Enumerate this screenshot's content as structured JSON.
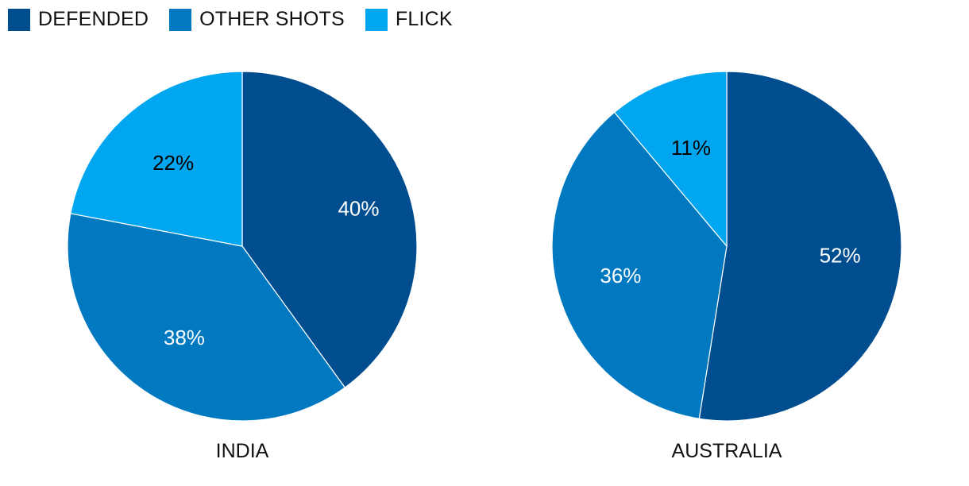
{
  "chart_data": [
    {
      "type": "pie",
      "title": "INDIA",
      "categories": [
        "DEFENDED",
        "OTHER SHOTS",
        "FLICK"
      ],
      "values": [
        40,
        38,
        22
      ],
      "labels": [
        "40%",
        "38%",
        "22%"
      ]
    },
    {
      "type": "pie",
      "title": "AUSTRALIA",
      "categories": [
        "DEFENDED",
        "OTHER SHOTS",
        "FLICK"
      ],
      "values": [
        52,
        36,
        11
      ],
      "labels": [
        "52%",
        "36%",
        "11%"
      ]
    }
  ],
  "legend": {
    "placement": "top-left",
    "items": [
      {
        "label": "DEFENDED",
        "color": "#004e8f"
      },
      {
        "label": "OTHER SHOTS",
        "color": "#0079c1"
      },
      {
        "label": "FLICK",
        "color": "#00a6f0"
      }
    ]
  },
  "label_colors": [
    "#ffffff",
    "#ffffff",
    "#000000"
  ]
}
